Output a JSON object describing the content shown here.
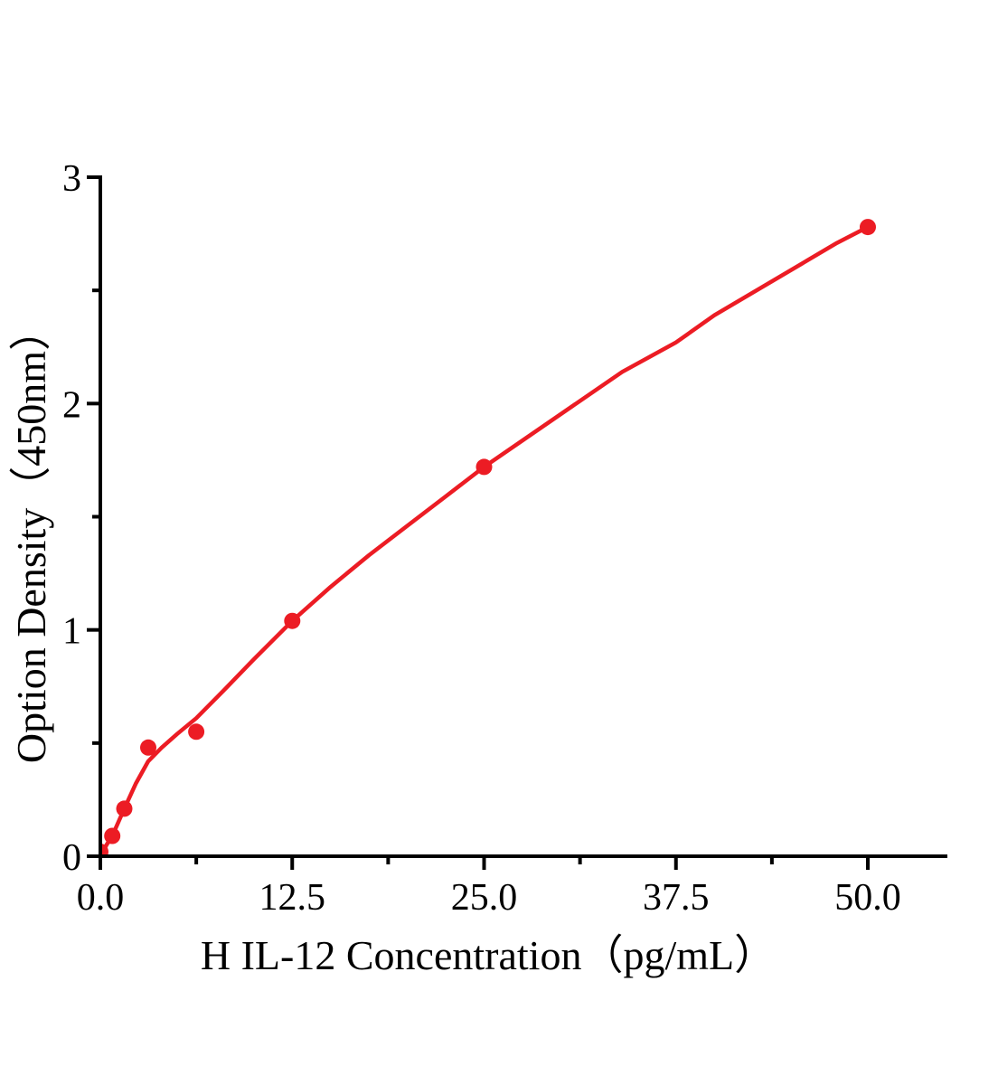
{
  "chart_data": {
    "type": "scatter",
    "title": "",
    "xlabel": "H IL-12 Concentration（pg/mL）",
    "ylabel": "Option Density（450nm）",
    "xlim": [
      0,
      55.2
    ],
    "ylim": [
      0,
      3
    ],
    "grid": false,
    "legend": "none",
    "x_ticks_major": [
      {
        "value": 0,
        "label": "0.0"
      },
      {
        "value": 12.5,
        "label": "12.5"
      },
      {
        "value": 25,
        "label": "25.0"
      },
      {
        "value": 37.5,
        "label": "37.5"
      },
      {
        "value": 50,
        "label": "50.0"
      }
    ],
    "x_ticks_minor": [
      6.25,
      18.75,
      31.25,
      43.75
    ],
    "y_ticks_major": [
      {
        "value": 0,
        "label": "0"
      },
      {
        "value": 1,
        "label": "1"
      },
      {
        "value": 2,
        "label": "2"
      },
      {
        "value": 3,
        "label": "3"
      }
    ],
    "y_ticks_minor": [
      0.5,
      1.5,
      2.5
    ],
    "series": [
      {
        "name": "standard-points",
        "kind": "scatter",
        "points": [
          {
            "x": 0,
            "y": 0.02
          },
          {
            "x": 0.78,
            "y": 0.09
          },
          {
            "x": 1.56,
            "y": 0.21
          },
          {
            "x": 3.12,
            "y": 0.48
          },
          {
            "x": 6.25,
            "y": 0.55
          },
          {
            "x": 12.5,
            "y": 1.04
          },
          {
            "x": 25,
            "y": 1.72
          },
          {
            "x": 50,
            "y": 2.78
          }
        ]
      },
      {
        "name": "fitted-curve",
        "kind": "line",
        "points": [
          {
            "x": 0,
            "y": 0.0
          },
          {
            "x": 0.4,
            "y": 0.05
          },
          {
            "x": 0.78,
            "y": 0.09
          },
          {
            "x": 1.56,
            "y": 0.21
          },
          {
            "x": 2.3,
            "y": 0.32
          },
          {
            "x": 3.12,
            "y": 0.42
          },
          {
            "x": 4,
            "y": 0.48
          },
          {
            "x": 5,
            "y": 0.54
          },
          {
            "x": 6.25,
            "y": 0.61
          },
          {
            "x": 8,
            "y": 0.73
          },
          {
            "x": 10,
            "y": 0.87
          },
          {
            "x": 12.5,
            "y": 1.04
          },
          {
            "x": 15,
            "y": 1.19
          },
          {
            "x": 17.5,
            "y": 1.33
          },
          {
            "x": 20,
            "y": 1.46
          },
          {
            "x": 22.5,
            "y": 1.59
          },
          {
            "x": 25,
            "y": 1.72
          },
          {
            "x": 28,
            "y": 1.86
          },
          {
            "x": 31,
            "y": 2.0
          },
          {
            "x": 34,
            "y": 2.14
          },
          {
            "x": 37.5,
            "y": 2.27
          },
          {
            "x": 40,
            "y": 2.39
          },
          {
            "x": 43,
            "y": 2.51
          },
          {
            "x": 46,
            "y": 2.63
          },
          {
            "x": 48,
            "y": 2.71
          },
          {
            "x": 50,
            "y": 2.78
          }
        ]
      }
    ],
    "colors": {
      "curve": "#ec1c24",
      "marker": "#ec1c24",
      "axis": "#000000",
      "background": "#ffffff"
    },
    "marker_radius": 9,
    "curve_stroke_width": 4.5
  }
}
